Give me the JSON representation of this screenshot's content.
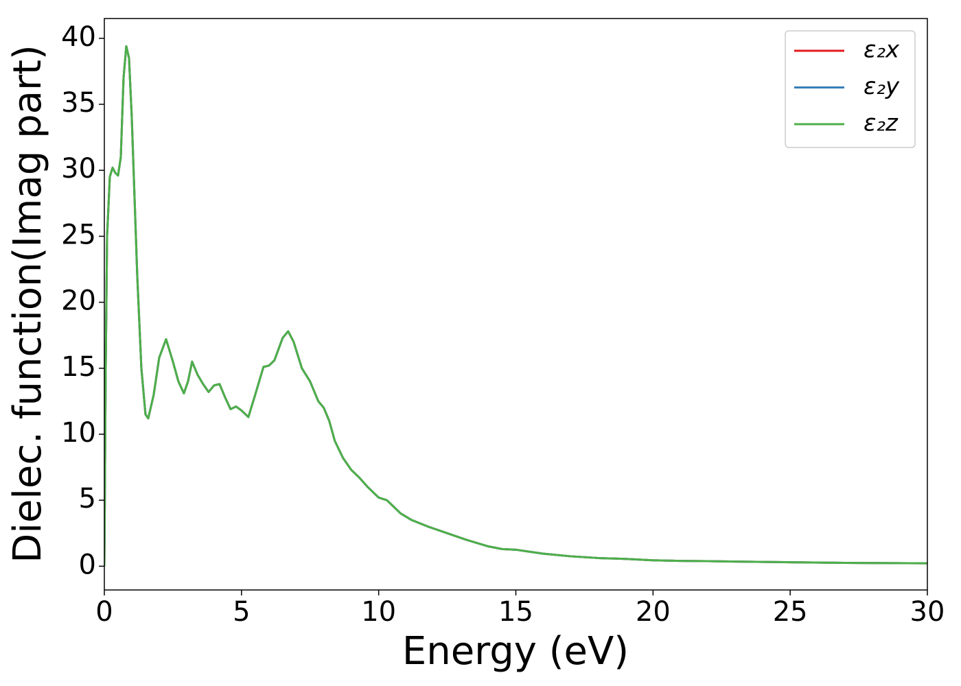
{
  "chart_data": {
    "type": "line",
    "xlabel": "Energy (eV)",
    "ylabel": "Dielec. function(Imag part)",
    "x": [
      0,
      0.05,
      0.1,
      0.2,
      0.3,
      0.4,
      0.5,
      0.6,
      0.7,
      0.8,
      0.9,
      1.0,
      1.1,
      1.2,
      1.35,
      1.5,
      1.6,
      1.8,
      2.0,
      2.25,
      2.5,
      2.7,
      2.9,
      3.05,
      3.2,
      3.4,
      3.6,
      3.8,
      4.0,
      4.2,
      4.4,
      4.6,
      4.8,
      5.0,
      5.25,
      5.5,
      5.8,
      6.0,
      6.2,
      6.5,
      6.7,
      6.9,
      7.2,
      7.5,
      7.8,
      8.0,
      8.2,
      8.4,
      8.7,
      9.0,
      9.3,
      9.6,
      10.0,
      10.3,
      10.5,
      10.8,
      11.2,
      11.8,
      12.5,
      13.2,
      14.0,
      14.5,
      15.0,
      15.5,
      16,
      17,
      18,
      19,
      20,
      21,
      22,
      23,
      25,
      27,
      30
    ],
    "series": [
      {
        "name": "ε₂x",
        "color": "#e41a1c",
        "values": [
          0,
          15,
          25,
          29.5,
          30.2,
          29.8,
          29.6,
          31,
          37,
          39.4,
          38.5,
          34,
          28,
          22,
          15,
          11.5,
          11.2,
          13,
          15.8,
          17.2,
          15.5,
          14,
          13.1,
          14,
          15.5,
          14.5,
          13.8,
          13.2,
          13.7,
          13.8,
          12.8,
          11.9,
          12.1,
          11.8,
          11.3,
          13,
          15.1,
          15.2,
          15.6,
          17.3,
          17.8,
          17,
          15,
          14,
          12.5,
          12,
          11,
          9.5,
          8.2,
          7.3,
          6.7,
          6,
          5.2,
          5,
          4.6,
          4,
          3.5,
          3,
          2.5,
          2,
          1.5,
          1.3,
          1.25,
          1.1,
          0.95,
          0.75,
          0.62,
          0.55,
          0.45,
          0.4,
          0.38,
          0.35,
          0.3,
          0.25,
          0.22
        ]
      },
      {
        "name": "ε₂y",
        "color": "#377eb8",
        "values": [
          0,
          15,
          25,
          29.5,
          30.2,
          29.8,
          29.6,
          31,
          37,
          39.4,
          38.5,
          34,
          28,
          22,
          15,
          11.5,
          11.2,
          13,
          15.8,
          17.2,
          15.5,
          14,
          13.1,
          14,
          15.5,
          14.5,
          13.8,
          13.2,
          13.7,
          13.8,
          12.8,
          11.9,
          12.1,
          11.8,
          11.3,
          13,
          15.1,
          15.2,
          15.6,
          17.3,
          17.8,
          17,
          15,
          14,
          12.5,
          12,
          11,
          9.5,
          8.2,
          7.3,
          6.7,
          6,
          5.2,
          5,
          4.6,
          4,
          3.5,
          3,
          2.5,
          2,
          1.5,
          1.3,
          1.25,
          1.1,
          0.95,
          0.75,
          0.62,
          0.55,
          0.45,
          0.4,
          0.38,
          0.35,
          0.3,
          0.25,
          0.22
        ]
      },
      {
        "name": "ε₂z",
        "color": "#4daf4a",
        "values": [
          0,
          15,
          25,
          29.5,
          30.2,
          29.8,
          29.6,
          31,
          37,
          39.4,
          38.5,
          34,
          28,
          22,
          15,
          11.5,
          11.2,
          13,
          15.8,
          17.2,
          15.5,
          14,
          13.1,
          14,
          15.5,
          14.5,
          13.8,
          13.2,
          13.7,
          13.8,
          12.8,
          11.9,
          12.1,
          11.8,
          11.3,
          13,
          15.1,
          15.2,
          15.6,
          17.3,
          17.8,
          17,
          15,
          14,
          12.5,
          12,
          11,
          9.5,
          8.2,
          7.3,
          6.7,
          6,
          5.2,
          5,
          4.6,
          4,
          3.5,
          3,
          2.5,
          2,
          1.5,
          1.3,
          1.25,
          1.1,
          0.95,
          0.75,
          0.62,
          0.55,
          0.45,
          0.4,
          0.38,
          0.35,
          0.3,
          0.25,
          0.22
        ]
      }
    ],
    "xlim": [
      0,
      30
    ],
    "xticks": [
      0,
      5,
      10,
      15,
      20,
      25,
      30
    ],
    "ylim": [
      -1.8,
      41.5
    ],
    "yticks": [
      0,
      5,
      10,
      15,
      20,
      25,
      30,
      35,
      40
    ],
    "grid": false,
    "legend": "upper right"
  }
}
